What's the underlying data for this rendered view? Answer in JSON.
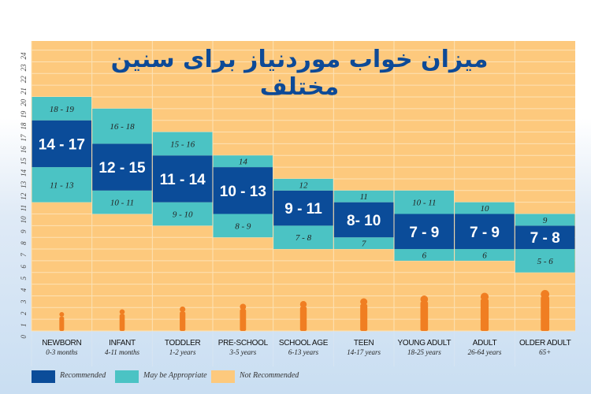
{
  "title": "میزان خواب موردنیاز برای سنین مختلف",
  "chart_data": {
    "type": "bar",
    "subtype": "stacked-range",
    "title": "میزان خواب موردنیاز برای سنین مختلف",
    "ylim": [
      0,
      24
    ],
    "yticks": [
      0,
      1,
      2,
      3,
      4,
      5,
      6,
      7,
      8,
      9,
      10,
      11,
      12,
      13,
      14,
      15,
      16,
      17,
      18,
      19,
      20,
      21,
      22,
      23,
      24
    ],
    "grid": true,
    "legend_position": "bottom-left",
    "colors": {
      "recommended": "#0b4c99",
      "may_be_appropriate": "#4bc3c4",
      "not_recommended": "#fdc97d"
    },
    "legend": [
      "Recommended",
      "May be Appropriate",
      "Not Recommended"
    ],
    "categories": [
      {
        "name": "NEWBORN",
        "age": "0-3 months",
        "low": {
          "label": "11 - 13",
          "from": 11,
          "to": 13
        },
        "rec": {
          "label": "14 - 17",
          "from": 14,
          "to": 17
        },
        "high": {
          "label": "18 - 19",
          "from": 18,
          "to": 19
        }
      },
      {
        "name": "INFANT",
        "age": "4-11 months",
        "low": {
          "label": "10 - 11",
          "from": 10,
          "to": 11
        },
        "rec": {
          "label": "12 - 15",
          "from": 12,
          "to": 15
        },
        "high": {
          "label": "16 - 18",
          "from": 16,
          "to": 18
        }
      },
      {
        "name": "TODDLER",
        "age": "1-2 years",
        "low": {
          "label": "9 - 10",
          "from": 9,
          "to": 10
        },
        "rec": {
          "label": "11 - 14",
          "from": 11,
          "to": 14
        },
        "high": {
          "label": "15 - 16",
          "from": 15,
          "to": 16
        }
      },
      {
        "name": "PRE-SCHOOL",
        "age": "3-5 years",
        "low": {
          "label": "8 - 9",
          "from": 8,
          "to": 9
        },
        "rec": {
          "label": "10 - 13",
          "from": 10,
          "to": 13
        },
        "high": {
          "label": "14",
          "from": 14,
          "to": 14
        }
      },
      {
        "name": "SCHOOL AGE",
        "age": "6-13 years",
        "low": {
          "label": "7 - 8",
          "from": 7,
          "to": 8
        },
        "rec": {
          "label": "9 - 11",
          "from": 9,
          "to": 11
        },
        "high": {
          "label": "12",
          "from": 12,
          "to": 12
        }
      },
      {
        "name": "TEEN",
        "age": "14-17 years",
        "low": {
          "label": "7",
          "from": 7,
          "to": 7
        },
        "rec": {
          "label": "8- 10",
          "from": 8,
          "to": 10
        },
        "high": {
          "label": "11",
          "from": 11,
          "to": 11
        }
      },
      {
        "name": "YOUNG ADULT",
        "age": "18-25 years",
        "low": {
          "label": "6",
          "from": 6,
          "to": 6
        },
        "rec": {
          "label": "7 - 9",
          "from": 7,
          "to": 9
        },
        "high": {
          "label": "10 - 11",
          "from": 10,
          "to": 11
        }
      },
      {
        "name": "ADULT",
        "age": "26-64 years",
        "low": {
          "label": "6",
          "from": 6,
          "to": 6
        },
        "rec": {
          "label": "7 - 9",
          "from": 7,
          "to": 9
        },
        "high": {
          "label": "10",
          "from": 10,
          "to": 10
        }
      },
      {
        "name": "OLDER ADULT",
        "age": "65+",
        "low": {
          "label": "5 - 6",
          "from": 5,
          "to": 6
        },
        "rec": {
          "label": "7 - 8",
          "from": 7,
          "to": 8
        },
        "high": {
          "label": "9",
          "from": 9,
          "to": 9
        }
      }
    ]
  }
}
